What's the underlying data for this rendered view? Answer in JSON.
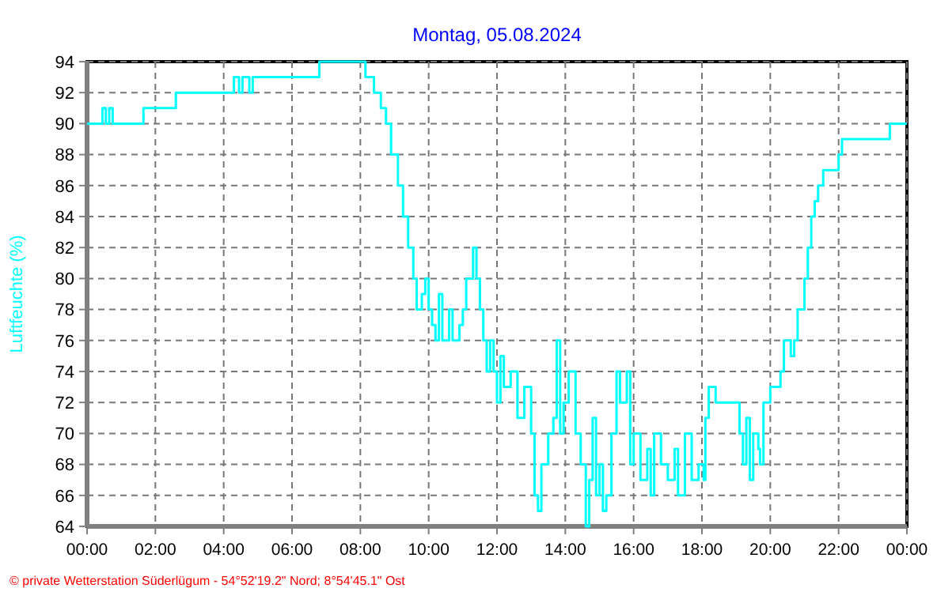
{
  "chart_data": {
    "type": "step",
    "title": "Montag, 05.08.2024",
    "ylabel": "Luftfeuchte (%)",
    "annotations": [
      "© private Wetterstation Süderlügum - 54°52'19.2\" Nord; 8°54'45.1\" Ost"
    ],
    "xlim": [
      0,
      24
    ],
    "xticks": [
      {
        "value": 0,
        "label": "00:00"
      },
      {
        "value": 2,
        "label": "02:00"
      },
      {
        "value": 4,
        "label": "04:00"
      },
      {
        "value": 6,
        "label": "06:00"
      },
      {
        "value": 8,
        "label": "08:00"
      },
      {
        "value": 10,
        "label": "10:00"
      },
      {
        "value": 12,
        "label": "12:00"
      },
      {
        "value": 14,
        "label": "14:00"
      },
      {
        "value": 16,
        "label": "16:00"
      },
      {
        "value": 18,
        "label": "18:00"
      },
      {
        "value": 20,
        "label": "20:00"
      },
      {
        "value": 22,
        "label": "22:00"
      },
      {
        "value": 24,
        "label": "00:00"
      }
    ],
    "ylim": [
      64,
      94
    ],
    "yticks": [
      64,
      66,
      68,
      70,
      72,
      74,
      76,
      78,
      80,
      82,
      84,
      86,
      88,
      90,
      92,
      94
    ],
    "grid": true,
    "line_style": "solid",
    "marker": "none",
    "series": [
      {
        "color": "#00ffff",
        "x": [
          0,
          0.45,
          0.55,
          0.65,
          0.75,
          1.65,
          2.6,
          4.3,
          4.45,
          4.55,
          4.75,
          4.85,
          6.8,
          8.15,
          8.4,
          8.6,
          8.75,
          8.9,
          9.1,
          9.25,
          9.4,
          9.55,
          9.65,
          9.8,
          9.9,
          10.0,
          10.1,
          10.2,
          10.3,
          10.4,
          10.6,
          10.7,
          10.9,
          11.0,
          11.1,
          11.3,
          11.4,
          11.5,
          11.6,
          11.7,
          11.8,
          11.9,
          12.0,
          12.1,
          12.2,
          12.4,
          12.6,
          12.8,
          13.0,
          13.1,
          13.2,
          13.3,
          13.5,
          13.65,
          13.75,
          13.85,
          13.95,
          14.1,
          14.3,
          14.45,
          14.6,
          14.7,
          14.8,
          14.9,
          15.0,
          15.1,
          15.2,
          15.35,
          15.5,
          15.6,
          15.8,
          15.9,
          16.0,
          16.2,
          16.4,
          16.5,
          16.6,
          16.8,
          17.0,
          17.2,
          17.3,
          17.5,
          17.7,
          17.9,
          18.05,
          18.1,
          18.2,
          18.4,
          19.0,
          19.1,
          19.2,
          19.3,
          19.4,
          19.5,
          19.65,
          19.7,
          19.8,
          20.0,
          20.3,
          20.4,
          20.6,
          20.7,
          20.8,
          21.0,
          21.1,
          21.2,
          21.3,
          21.4,
          21.55,
          22.0,
          22.1,
          23.5,
          24
        ],
        "values": [
          90,
          91,
          90,
          91,
          90,
          91,
          92,
          93,
          92,
          93,
          92,
          93,
          94,
          93,
          92,
          91,
          90,
          88,
          86,
          84,
          82,
          80,
          78,
          79,
          80,
          78,
          77,
          76,
          79,
          76,
          78,
          76,
          77,
          78,
          80,
          82,
          80,
          78,
          76,
          74,
          76,
          74,
          72,
          75,
          73,
          74,
          71,
          73,
          70,
          66,
          65,
          68,
          70,
          71,
          76,
          70,
          72,
          74,
          70,
          68,
          64,
          67,
          71,
          66,
          68,
          65,
          66,
          70,
          74,
          72,
          74,
          68,
          70,
          67,
          69,
          66,
          70,
          68,
          67,
          69,
          66,
          70,
          67,
          68,
          67,
          71,
          73,
          72,
          72,
          70,
          68,
          71,
          67,
          70,
          69,
          68,
          72,
          73,
          74,
          76,
          75,
          76,
          78,
          80,
          82,
          84,
          85,
          86,
          87,
          88,
          89,
          90,
          90
        ]
      }
    ]
  }
}
